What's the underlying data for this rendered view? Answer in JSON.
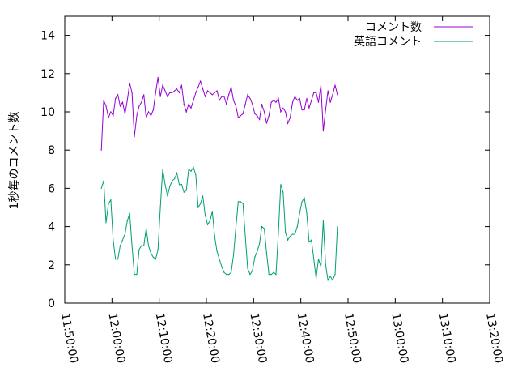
{
  "chart_data": {
    "type": "line",
    "title": "",
    "xlabel": "",
    "ylabel": "1秒毎のコメント数",
    "ylim": [
      0,
      15
    ],
    "yticks": [
      0,
      2,
      4,
      6,
      8,
      10,
      12,
      14
    ],
    "xlim": [
      "11:50:00",
      "13:20:00"
    ],
    "xticks": [
      "11:50:00",
      "12:00:00",
      "12:10:00",
      "12:20:00",
      "12:30:00",
      "12:40:00",
      "12:50:00",
      "13:00:00",
      "13:10:00",
      "13:20:00"
    ],
    "grid": false,
    "legend_position": "top-right",
    "series": [
      {
        "name": "コメント数",
        "color": "#9400d3",
        "points": [
          [
            "11:57:45",
            8.0
          ],
          [
            "11:58:15",
            10.6
          ],
          [
            "11:58:45",
            10.3
          ],
          [
            "11:59:15",
            9.7
          ],
          [
            "11:59:45",
            10.0
          ],
          [
            "12:00:15",
            9.8
          ],
          [
            "12:00:45",
            10.7
          ],
          [
            "12:01:15",
            10.9
          ],
          [
            "12:01:45",
            10.3
          ],
          [
            "12:02:15",
            10.5
          ],
          [
            "12:02:45",
            9.9
          ],
          [
            "12:03:15",
            10.6
          ],
          [
            "12:03:45",
            11.5
          ],
          [
            "12:04:15",
            11.0
          ],
          [
            "12:04:45",
            8.7
          ],
          [
            "12:05:15",
            9.8
          ],
          [
            "12:05:45",
            10.3
          ],
          [
            "12:06:15",
            10.5
          ],
          [
            "12:06:45",
            10.9
          ],
          [
            "12:07:15",
            9.7
          ],
          [
            "12:07:45",
            10.0
          ],
          [
            "12:08:15",
            9.8
          ],
          [
            "12:08:45",
            10.1
          ],
          [
            "12:09:15",
            11.0
          ],
          [
            "12:09:45",
            11.8
          ],
          [
            "12:10:15",
            10.8
          ],
          [
            "12:10:45",
            11.4
          ],
          [
            "12:11:15",
            11.1
          ],
          [
            "12:11:45",
            10.8
          ],
          [
            "12:12:15",
            11.0
          ],
          [
            "12:12:45",
            11.0
          ],
          [
            "12:13:15",
            11.1
          ],
          [
            "12:13:45",
            11.2
          ],
          [
            "12:14:15",
            11.0
          ],
          [
            "12:14:45",
            11.4
          ],
          [
            "12:15:15",
            10.4
          ],
          [
            "12:15:45",
            10.0
          ],
          [
            "12:16:15",
            10.4
          ],
          [
            "12:16:45",
            10.2
          ],
          [
            "12:17:15",
            10.6
          ],
          [
            "12:17:45",
            11.0
          ],
          [
            "12:18:15",
            11.3
          ],
          [
            "12:18:45",
            11.6
          ],
          [
            "12:19:15",
            11.2
          ],
          [
            "12:19:45",
            10.8
          ],
          [
            "12:20:15",
            11.1
          ],
          [
            "12:20:45",
            11.0
          ],
          [
            "12:21:15",
            10.9
          ],
          [
            "12:21:45",
            11.0
          ],
          [
            "12:22:15",
            11.1
          ],
          [
            "12:22:45",
            10.6
          ],
          [
            "12:23:15",
            10.8
          ],
          [
            "12:23:45",
            10.8
          ],
          [
            "12:24:15",
            10.4
          ],
          [
            "12:24:45",
            10.9
          ],
          [
            "12:25:15",
            11.3
          ],
          [
            "12:25:45",
            10.6
          ],
          [
            "12:26:15",
            10.3
          ],
          [
            "12:26:45",
            9.7
          ],
          [
            "12:27:15",
            9.8
          ],
          [
            "12:27:45",
            9.9
          ],
          [
            "12:28:15",
            10.4
          ],
          [
            "12:28:45",
            10.9
          ],
          [
            "12:29:15",
            10.7
          ],
          [
            "12:29:45",
            10.4
          ],
          [
            "12:30:15",
            9.9
          ],
          [
            "12:30:45",
            9.8
          ],
          [
            "12:31:15",
            9.6
          ],
          [
            "12:31:45",
            10.4
          ],
          [
            "12:32:15",
            10.0
          ],
          [
            "12:32:45",
            9.4
          ],
          [
            "12:33:15",
            9.8
          ],
          [
            "12:33:45",
            10.5
          ],
          [
            "12:34:15",
            10.6
          ],
          [
            "12:34:45",
            10.5
          ],
          [
            "12:35:15",
            10.7
          ],
          [
            "12:35:45",
            10.0
          ],
          [
            "12:36:15",
            10.2
          ],
          [
            "12:36:45",
            10.0
          ],
          [
            "12:37:15",
            9.4
          ],
          [
            "12:37:45",
            9.7
          ],
          [
            "12:38:15",
            10.5
          ],
          [
            "12:38:45",
            10.8
          ],
          [
            "12:39:15",
            10.6
          ],
          [
            "12:39:45",
            10.7
          ],
          [
            "12:40:15",
            10.1
          ],
          [
            "12:40:45",
            10.1
          ],
          [
            "12:41:15",
            10.7
          ],
          [
            "12:41:45",
            10.2
          ],
          [
            "12:42:15",
            10.6
          ],
          [
            "12:42:45",
            11.0
          ],
          [
            "12:43:15",
            11.0
          ],
          [
            "12:43:45",
            10.5
          ],
          [
            "12:44:15",
            11.4
          ],
          [
            "12:44:45",
            9.0
          ],
          [
            "12:45:15",
            10.1
          ],
          [
            "12:45:45",
            11.1
          ],
          [
            "12:46:15",
            10.5
          ],
          [
            "12:46:45",
            10.9
          ],
          [
            "12:47:15",
            11.4
          ],
          [
            "12:47:45",
            10.9
          ]
        ]
      },
      {
        "name": "英語コメント",
        "color": "#009e73",
        "points": [
          [
            "11:57:45",
            6.0
          ],
          [
            "11:58:15",
            6.4
          ],
          [
            "11:58:45",
            4.2
          ],
          [
            "11:59:15",
            5.2
          ],
          [
            "11:59:45",
            5.4
          ],
          [
            "12:00:15",
            3.3
          ],
          [
            "12:00:45",
            2.3
          ],
          [
            "12:01:15",
            2.3
          ],
          [
            "12:01:45",
            3.0
          ],
          [
            "12:02:15",
            3.3
          ],
          [
            "12:02:45",
            3.6
          ],
          [
            "12:03:15",
            4.3
          ],
          [
            "12:03:45",
            4.7
          ],
          [
            "12:04:15",
            3.0
          ],
          [
            "12:04:45",
            1.5
          ],
          [
            "12:05:15",
            1.5
          ],
          [
            "12:05:45",
            2.8
          ],
          [
            "12:06:15",
            3.0
          ],
          [
            "12:06:45",
            3.0
          ],
          [
            "12:07:15",
            3.9
          ],
          [
            "12:07:45",
            3.0
          ],
          [
            "12:08:15",
            2.6
          ],
          [
            "12:08:45",
            2.4
          ],
          [
            "12:09:15",
            2.3
          ],
          [
            "12:09:45",
            2.8
          ],
          [
            "12:10:15",
            5.0
          ],
          [
            "12:10:45",
            7.0
          ],
          [
            "12:11:15",
            6.2
          ],
          [
            "12:11:45",
            5.6
          ],
          [
            "12:12:15",
            6.1
          ],
          [
            "12:12:45",
            6.4
          ],
          [
            "12:13:15",
            6.5
          ],
          [
            "12:13:45",
            6.8
          ],
          [
            "12:14:15",
            6.2
          ],
          [
            "12:14:45",
            6.2
          ],
          [
            "12:15:15",
            5.8
          ],
          [
            "12:15:45",
            5.9
          ],
          [
            "12:16:15",
            7.0
          ],
          [
            "12:16:45",
            6.9
          ],
          [
            "12:17:15",
            7.1
          ],
          [
            "12:17:45",
            6.7
          ],
          [
            "12:18:15",
            5.0
          ],
          [
            "12:18:45",
            5.2
          ],
          [
            "12:19:15",
            5.6
          ],
          [
            "12:19:45",
            4.6
          ],
          [
            "12:20:15",
            4.1
          ],
          [
            "12:20:45",
            4.3
          ],
          [
            "12:21:15",
            4.8
          ],
          [
            "12:21:45",
            3.5
          ],
          [
            "12:22:15",
            2.7
          ],
          [
            "12:22:45",
            2.3
          ],
          [
            "12:23:15",
            1.9
          ],
          [
            "12:23:45",
            1.6
          ],
          [
            "12:24:15",
            1.5
          ],
          [
            "12:24:45",
            1.5
          ],
          [
            "12:25:15",
            1.6
          ],
          [
            "12:25:45",
            2.5
          ],
          [
            "12:26:15",
            4.0
          ],
          [
            "12:26:45",
            5.3
          ],
          [
            "12:27:15",
            5.3
          ],
          [
            "12:27:45",
            5.2
          ],
          [
            "12:28:15",
            3.5
          ],
          [
            "12:28:45",
            1.8
          ],
          [
            "12:29:15",
            1.5
          ],
          [
            "12:29:45",
            1.7
          ],
          [
            "12:30:15",
            2.4
          ],
          [
            "12:30:45",
            2.7
          ],
          [
            "12:31:15",
            3.1
          ],
          [
            "12:31:45",
            4.0
          ],
          [
            "12:32:15",
            3.9
          ],
          [
            "12:32:45",
            2.6
          ],
          [
            "12:33:15",
            1.5
          ],
          [
            "12:33:45",
            1.5
          ],
          [
            "12:34:15",
            1.6
          ],
          [
            "12:34:45",
            1.5
          ],
          [
            "12:35:15",
            3.7
          ],
          [
            "12:35:45",
            6.2
          ],
          [
            "12:36:15",
            5.8
          ],
          [
            "12:36:45",
            3.7
          ],
          [
            "12:37:15",
            3.3
          ],
          [
            "12:37:45",
            3.5
          ],
          [
            "12:38:15",
            3.6
          ],
          [
            "12:38:45",
            3.6
          ],
          [
            "12:39:15",
            4.0
          ],
          [
            "12:39:45",
            4.7
          ],
          [
            "12:40:15",
            5.3
          ],
          [
            "12:40:45",
            5.5
          ],
          [
            "12:41:15",
            4.7
          ],
          [
            "12:41:45",
            3.2
          ],
          [
            "12:42:15",
            3.3
          ],
          [
            "12:42:45",
            2.3
          ],
          [
            "12:43:15",
            1.3
          ],
          [
            "12:43:45",
            2.3
          ],
          [
            "12:44:15",
            1.9
          ],
          [
            "12:44:45",
            4.3
          ],
          [
            "12:45:15",
            2.0
          ],
          [
            "12:45:45",
            1.2
          ],
          [
            "12:46:15",
            1.4
          ],
          [
            "12:46:45",
            1.2
          ],
          [
            "12:47:15",
            1.5
          ],
          [
            "12:47:45",
            4.0
          ]
        ]
      }
    ]
  }
}
